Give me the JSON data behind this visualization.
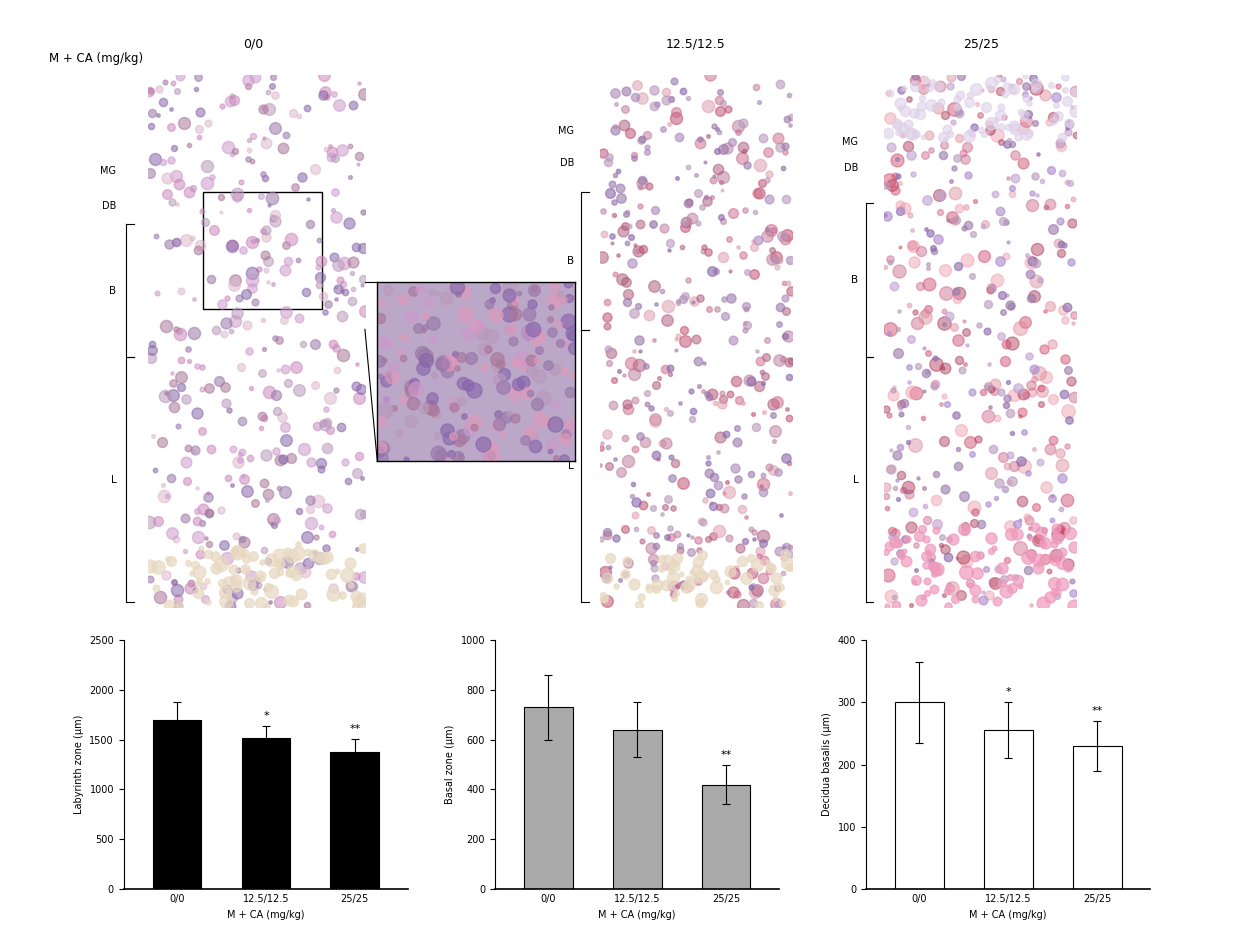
{
  "title_label": "M + CA (mg/kg)",
  "dose_labels": [
    "0/0",
    "12.5/12.5",
    "25/25"
  ],
  "chart1": {
    "ylabel": "Labyrinth zone (μm)",
    "xlabel": "M + CA (mg/kg)",
    "categories": [
      "0/0",
      "12.5/12.5",
      "25/25"
    ],
    "values": [
      1700,
      1520,
      1380
    ],
    "errors": [
      180,
      120,
      130
    ],
    "sig": [
      "",
      "*",
      "**"
    ],
    "ylim": [
      0,
      2500
    ],
    "yticks": [
      0,
      500,
      1000,
      1500,
      2000,
      2500
    ],
    "bar_color": "#000000"
  },
  "chart2": {
    "ylabel": "Basal zone (μm)",
    "xlabel": "M + CA (mg/kg)",
    "categories": [
      "0/0",
      "12.5/12.5",
      "25/25"
    ],
    "values": [
      730,
      640,
      420
    ],
    "errors": [
      130,
      110,
      80
    ],
    "sig": [
      "",
      "",
      "**"
    ],
    "ylim": [
      0,
      1000
    ],
    "yticks": [
      0,
      200,
      400,
      600,
      800,
      1000
    ],
    "bar_color": "#aaaaaa"
  },
  "chart3": {
    "ylabel": "Decidua basalis (μm)",
    "xlabel": "M + CA (mg/kg)",
    "categories": [
      "0/0",
      "12.5/12.5",
      "25/25"
    ],
    "values": [
      300,
      255,
      230
    ],
    "errors": [
      65,
      45,
      40
    ],
    "sig": [
      "",
      "*",
      "**"
    ],
    "ylim": [
      0,
      400
    ],
    "yticks": [
      0,
      100,
      200,
      300,
      400
    ],
    "bar_color": "#ffffff"
  },
  "bg_color": "#ffffff",
  "font_size_axis": 7,
  "font_size_tick": 7,
  "font_size_sig": 8,
  "bar_width": 0.55
}
